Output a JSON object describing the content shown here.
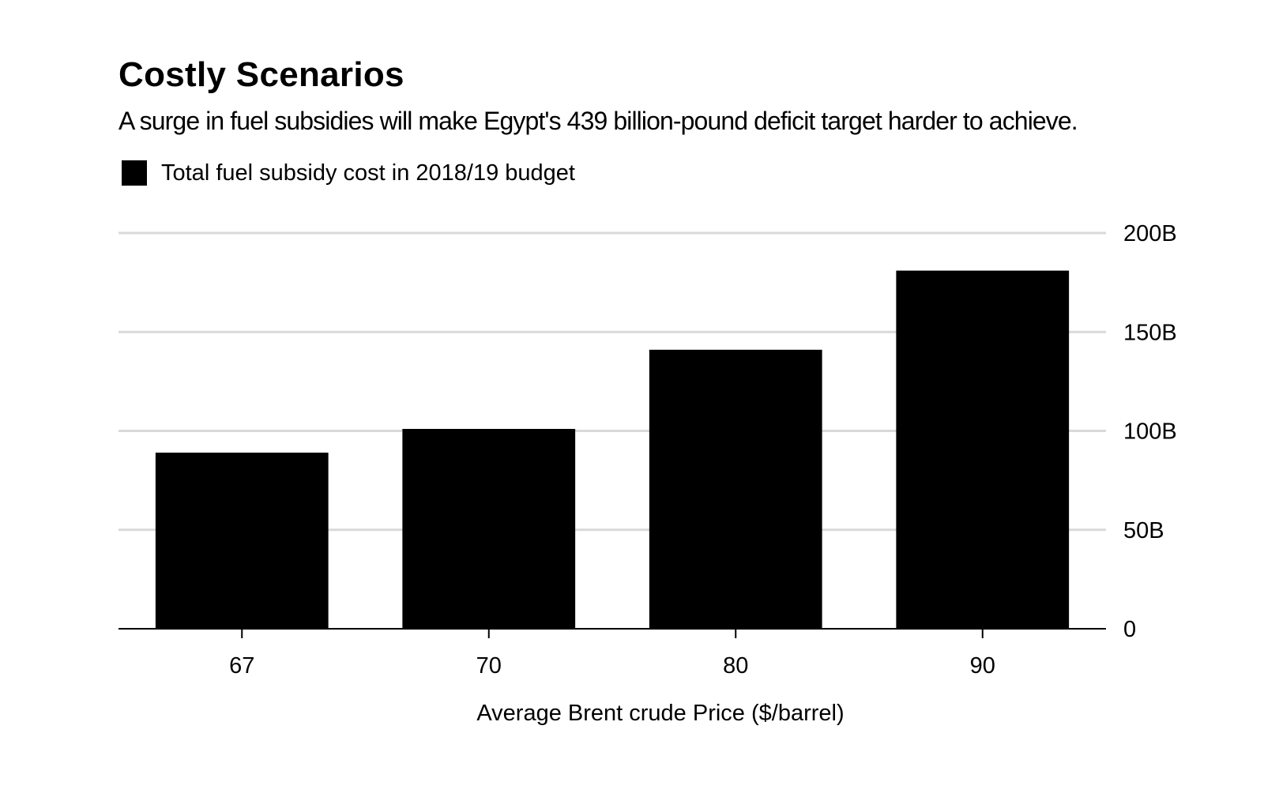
{
  "chart_data": {
    "type": "bar",
    "title": "Costly Scenarios",
    "subtitle": "A surge in fuel subsidies will make Egypt's 439 billion-pound deficit target harder to achieve.",
    "xlabel": "Average Brent crude Price ($/barrel)",
    "ylabel": "",
    "categories": [
      "67",
      "70",
      "80",
      "90"
    ],
    "series": [
      {
        "name": "Total fuel subsidy cost in 2018/19 budget",
        "color": "#000000",
        "values": [
          89,
          101,
          141,
          181
        ]
      }
    ],
    "ylim": [
      0,
      200
    ],
    "yticks": [
      {
        "value": 0,
        "label": "0"
      },
      {
        "value": 50,
        "label": "50B"
      },
      {
        "value": 100,
        "label": "100B"
      },
      {
        "value": 150,
        "label": "150B"
      },
      {
        "value": 200,
        "label": "200B"
      }
    ],
    "grid": true,
    "gridline_color": "#d9d9d9",
    "y_axis_position": "right",
    "legend_position": "top-left"
  }
}
